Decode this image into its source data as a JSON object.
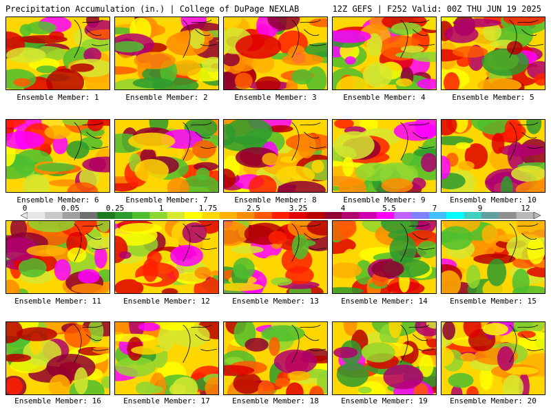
{
  "header": {
    "title_left": "Precipitation Accumulation (in.) | College of DuPage NEXLAB",
    "title_right": "12Z GEFS | F252 Valid: 00Z THU JUN 19 2025"
  },
  "members": [
    {
      "label": "Ensemble Member: 1"
    },
    {
      "label": "Ensemble Member: 2"
    },
    {
      "label": "Ensemble Member: 3"
    },
    {
      "label": "Ensemble Member: 4"
    },
    {
      "label": "Ensemble Member: 5"
    },
    {
      "label": "Ensemble Member: 6"
    },
    {
      "label": "Ensemble Member: 7"
    },
    {
      "label": "Ensemble Member: 8"
    },
    {
      "label": "Ensemble Member: 9"
    },
    {
      "label": "Ensemble Member: 10"
    },
    {
      "label": "Ensemble Member: 11"
    },
    {
      "label": "Ensemble Member: 12"
    },
    {
      "label": "Ensemble Member: 13"
    },
    {
      "label": "Ensemble Member: 14"
    },
    {
      "label": "Ensemble Member: 15"
    },
    {
      "label": "Ensemble Member: 16"
    },
    {
      "label": "Ensemble Member: 17"
    },
    {
      "label": "Ensemble Member: 18"
    },
    {
      "label": "Ensemble Member: 19"
    },
    {
      "label": "Ensemble Member: 20"
    }
  ],
  "colorbar": {
    "labels": [
      "0",
      "0.05",
      "0.25",
      "1",
      "1.75",
      "2.5",
      "3.25",
      "4",
      "5.5",
      "7",
      "9",
      "12"
    ],
    "colors": [
      "#e6e6e6",
      "#c8c8c8",
      "#a0a0a0",
      "#707070",
      "#1e7a1e",
      "#2e9b2e",
      "#4fbf2f",
      "#8fd630",
      "#d6e830",
      "#ffff00",
      "#ffd700",
      "#ffb000",
      "#ff8c00",
      "#ff5a00",
      "#ff2000",
      "#e00000",
      "#b80000",
      "#900030",
      "#b00070",
      "#d000b0",
      "#ff00ff",
      "#c060ff",
      "#8080ff",
      "#40c0ff",
      "#00ffff",
      "#40d0c0",
      "#60a0a0",
      "#909090",
      "#b8b8b8"
    ]
  }
}
